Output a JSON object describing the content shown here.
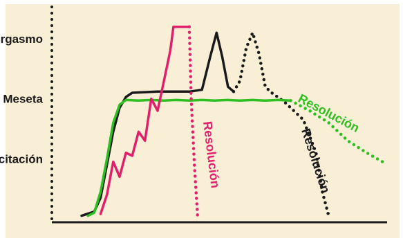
{
  "chart_data": {
    "type": "line",
    "title": "",
    "xlabel": "",
    "ylabel": "",
    "ylim": [
      0,
      3.3
    ],
    "grid": false,
    "legend": "none",
    "y_ticks": [
      {
        "label": "Excitación",
        "value": 1
      },
      {
        "label": "Meseta",
        "value": 2
      },
      {
        "label": "Orgasmo",
        "value": 3
      }
    ],
    "series": [
      {
        "color": "#1a1a1a",
        "style": "solid",
        "points": [
          [
            0,
            0.05
          ],
          [
            2,
            0.12
          ],
          [
            3,
            0.35
          ],
          [
            4,
            0.9
          ],
          [
            5,
            1.45
          ],
          [
            6,
            1.85
          ],
          [
            7,
            2.03
          ],
          [
            8,
            2.1
          ],
          [
            12,
            2.12
          ],
          [
            17,
            2.12
          ],
          [
            19,
            2.15
          ],
          [
            20.3,
            2.7
          ],
          [
            21.3,
            3.1
          ],
          [
            22.2,
            2.7
          ],
          [
            23.1,
            2.2
          ],
          [
            24,
            2.12
          ]
        ]
      },
      {
        "color": "#1a1a1a",
        "style": "dotted",
        "points": [
          [
            24,
            2.12
          ],
          [
            25,
            2.3
          ],
          [
            26,
            2.85
          ],
          [
            27,
            3.1
          ],
          [
            28,
            2.75
          ],
          [
            29,
            2.2
          ],
          [
            30,
            2.1
          ],
          [
            32,
            1.95
          ],
          [
            35,
            1.65
          ],
          [
            37,
            1.1
          ],
          [
            38,
            0.45
          ],
          [
            39,
            0.05
          ]
        ]
      },
      {
        "color": "#2dbf1f",
        "style": "solid",
        "points": [
          [
            1,
            0.05
          ],
          [
            2,
            0.1
          ],
          [
            3,
            0.45
          ],
          [
            4,
            1.0
          ],
          [
            5,
            1.6
          ],
          [
            6,
            1.9
          ],
          [
            7,
            1.98
          ],
          [
            9,
            1.97
          ],
          [
            11,
            1.98
          ],
          [
            13,
            1.97
          ],
          [
            15,
            1.98
          ],
          [
            17,
            1.97
          ],
          [
            19,
            1.98
          ],
          [
            21,
            1.97
          ],
          [
            23,
            1.98
          ],
          [
            25,
            1.97
          ],
          [
            27,
            1.98
          ],
          [
            29,
            1.97
          ],
          [
            31,
            1.98
          ],
          [
            33,
            1.97
          ]
        ]
      },
      {
        "color": "#2dbf1f",
        "style": "dotted",
        "points": [
          [
            33,
            1.97
          ],
          [
            36,
            1.8
          ],
          [
            39,
            1.6
          ],
          [
            42,
            1.3
          ],
          [
            45,
            1.1
          ],
          [
            48,
            0.92
          ]
        ]
      },
      {
        "color": "#e0206b",
        "style": "solid",
        "points": [
          [
            3,
            0.08
          ],
          [
            4,
            0.4
          ],
          [
            5,
            0.95
          ],
          [
            6,
            0.7
          ],
          [
            7,
            1.1
          ],
          [
            8,
            1.05
          ],
          [
            9,
            1.45
          ],
          [
            10,
            1.3
          ],
          [
            11,
            2.0
          ],
          [
            12,
            1.8
          ],
          [
            13,
            2.3
          ],
          [
            14,
            2.8
          ],
          [
            14.5,
            3.2
          ],
          [
            17,
            3.2
          ]
        ]
      },
      {
        "color": "#e0206b",
        "style": "dotted",
        "points": [
          [
            17,
            3.2
          ],
          [
            17.3,
            2.0
          ],
          [
            17.8,
            0.9
          ],
          [
            18.3,
            0.05
          ]
        ]
      }
    ],
    "annotations": [
      {
        "text": "Resolución",
        "color": "#e0206b"
      },
      {
        "text": "Resolución",
        "color": "#1a1a1a"
      },
      {
        "text": "Resolución",
        "color": "#2dbf1f"
      }
    ]
  }
}
